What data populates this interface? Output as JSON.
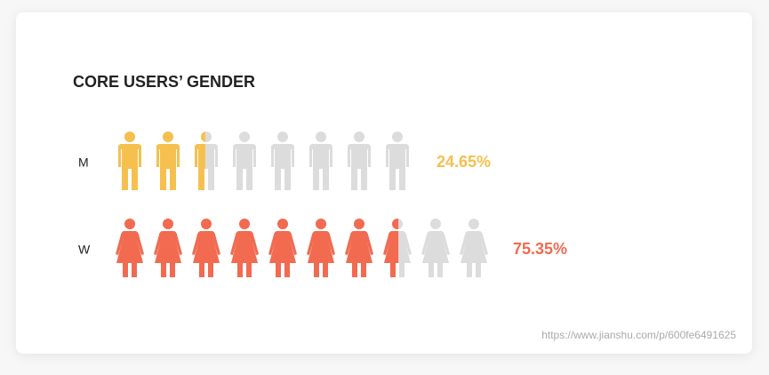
{
  "chart_data": {
    "type": "pictogram",
    "title": "CORE USERS’ GENDER",
    "icon_value": 10,
    "series": [
      {
        "name": "M",
        "icon": "man",
        "color": "#f6c04f",
        "empty_color": "#dcdcdc",
        "value": 24.65,
        "value_label": "24.65%",
        "icons": 8
      },
      {
        "name": "W",
        "icon": "woman",
        "color": "#f26a50",
        "empty_color": "#dcdcdc",
        "value": 75.35,
        "value_label": "75.35%",
        "icons": 10
      }
    ],
    "source": "https://www.jianshu.com/p/600fe6491625"
  }
}
